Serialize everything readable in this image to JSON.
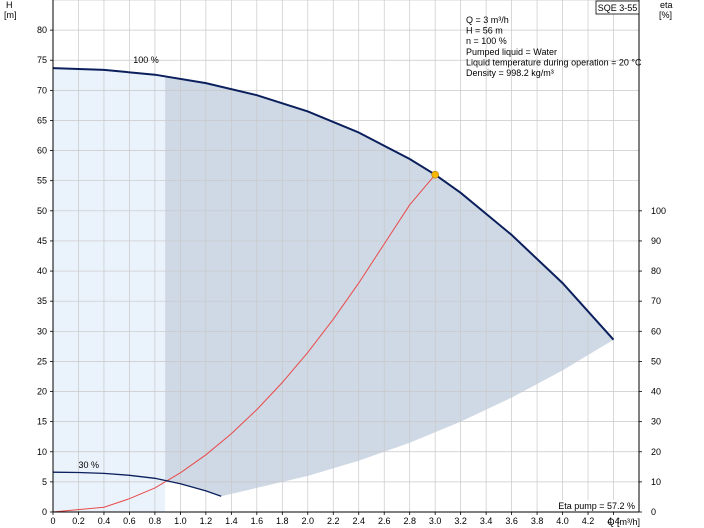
{
  "chart_data": {
    "type": "line",
    "title_box": "SQE 3-55",
    "y_left_label": [
      "H",
      "[m]"
    ],
    "y_right_label": [
      "eta",
      "[%]"
    ],
    "x_label": "Q [m³/h]",
    "x_range": [
      0,
      4.6
    ],
    "y_left_range": [
      0,
      85
    ],
    "y_right_range": [
      0,
      100
    ],
    "x_ticks": [
      "0",
      "0.2",
      "0.4",
      "0.6",
      "0.8",
      "1.0",
      "1.2",
      "1.4",
      "1.6",
      "1.8",
      "2.0",
      "2.2",
      "2.4",
      "2.6",
      "2.8",
      "3.0",
      "3.2",
      "3.4",
      "3.6",
      "3.8",
      "4.0",
      "4.2",
      "4.4"
    ],
    "x_tick_values": [
      0,
      0.2,
      0.4,
      0.6,
      0.8,
      1.0,
      1.2,
      1.4,
      1.6,
      1.8,
      2.0,
      2.2,
      2.4,
      2.6,
      2.8,
      3.0,
      3.2,
      3.4,
      3.6,
      3.8,
      4.0,
      4.2,
      4.4
    ],
    "y_left_ticks": [
      0,
      5,
      10,
      15,
      20,
      25,
      30,
      35,
      40,
      45,
      50,
      55,
      60,
      65,
      70,
      75,
      80
    ],
    "y_right_ticks": [
      0,
      10,
      20,
      30,
      40,
      50,
      60,
      70,
      80,
      90,
      100
    ],
    "info_lines": [
      "Q = 3 m³/h",
      "H = 56 m",
      "n = 100 %",
      "Pumped liquid = Water",
      "Liquid temperature during operation = 20 °C",
      "Density = 998.2 kg/m³"
    ],
    "eta_pump_label": "Eta pump = 57.2 %",
    "curve_100": {
      "name": "100 %",
      "x": [
        0,
        0.4,
        0.8,
        1.2,
        1.6,
        2.0,
        2.4,
        2.8,
        3.0,
        3.2,
        3.6,
        4.0,
        4.4
      ],
      "y": [
        73.7,
        73.4,
        72.6,
        71.2,
        69.2,
        66.5,
        63.0,
        58.6,
        56.0,
        53.0,
        46.0,
        38.0,
        28.6
      ]
    },
    "curve_30": {
      "name": "30 %",
      "x": [
        0,
        0.2,
        0.4,
        0.6,
        0.8,
        1.0,
        1.2,
        1.32
      ],
      "y": [
        6.6,
        6.55,
        6.4,
        6.1,
        5.6,
        4.7,
        3.5,
        2.6
      ]
    },
    "system_curve": {
      "x": [
        0.0,
        0.4,
        0.6,
        0.8,
        1.0,
        1.2,
        1.4,
        1.6,
        1.8,
        2.0,
        2.2,
        2.4,
        2.6,
        2.8,
        3.0
      ],
      "y": [
        0.0,
        0.8,
        2.2,
        4.0,
        6.5,
        9.5,
        13.0,
        17.0,
        21.5,
        26.5,
        32.0,
        38.0,
        44.5,
        51.0,
        56.0
      ]
    },
    "lower_boundary": {
      "x": [
        1.32,
        1.6,
        2.0,
        2.4,
        2.8,
        3.2,
        3.6,
        4.0,
        4.4
      ],
      "y": [
        2.6,
        4.0,
        6.0,
        8.5,
        11.5,
        15.0,
        19.0,
        23.5,
        28.6
      ]
    },
    "shading_left_x": [
      0,
      0.88
    ],
    "shading_right_start_x": 0.88,
    "duty_point": {
      "x": 3.0,
      "y": 56.0
    },
    "colors": {
      "curve": "#0a1f5c",
      "system": "#e84a4a",
      "shade_dark": "#cfd9e5",
      "shade_light": "#eaf2fb",
      "grid": "#c8c8c8",
      "duty": "#f5b800"
    }
  }
}
